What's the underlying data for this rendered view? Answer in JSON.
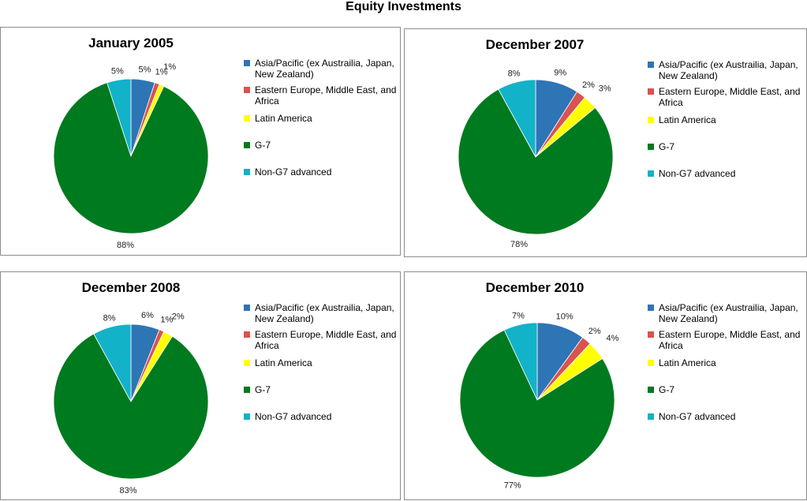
{
  "page_title": "Equity Investments",
  "colors": {
    "asia_pacific": "#2e75b6",
    "eastern_europe": "#d9534f",
    "latin_america": "#ffff00",
    "g7": "#007a1f",
    "non_g7": "#12b2c9"
  },
  "legend": [
    {
      "label": "Asia/Pacific (ex Austrailia, Japan, New Zealand)",
      "color": "#2e75b6"
    },
    {
      "label": "Eastern Europe, Middle East, and Africa",
      "color": "#d9534f"
    },
    {
      "label": "Latin America",
      "color": "#ffff00"
    },
    {
      "label": "G-7",
      "color": "#007a1f"
    },
    {
      "label": "Non-G7 advanced",
      "color": "#12b2c9"
    }
  ],
  "chart_data": [
    {
      "type": "pie",
      "title": "January 2005",
      "labels": [
        "Asia/Pacific (ex Austrailia, Japan, New Zealand)",
        "Eastern Europe, Middle East, and Africa",
        "Latin America",
        "G-7",
        "Non-G7 advanced"
      ],
      "values": [
        5,
        1,
        1,
        88,
        5
      ],
      "value_labels": [
        "5%",
        "1%",
        "1%",
        "88%",
        "5%"
      ],
      "legend_position": "right"
    },
    {
      "type": "pie",
      "title": "December 2007",
      "labels": [
        "Asia/Pacific (ex Austrailia, Japan, New Zealand)",
        "Eastern Europe, Middle East, and Africa",
        "Latin America",
        "G-7",
        "Non-G7 advanced"
      ],
      "values": [
        9,
        2,
        3,
        78,
        8
      ],
      "value_labels": [
        "9%",
        "2%",
        "3%",
        "78%",
        "8%"
      ],
      "legend_position": "right"
    },
    {
      "type": "pie",
      "title": "December 2008",
      "labels": [
        "Asia/Pacific (ex Austrailia, Japan, New Zealand)",
        "Eastern Europe, Middle East, and Africa",
        "Latin America",
        "G-7",
        "Non-G7 advanced"
      ],
      "values": [
        6,
        1,
        2,
        83,
        8
      ],
      "value_labels": [
        "6%",
        "1%",
        "2%",
        "83%",
        "8%"
      ],
      "legend_position": "right"
    },
    {
      "type": "pie",
      "title": "December 2010",
      "labels": [
        "Asia/Pacific (ex Austrailia, Japan, New Zealand)",
        "Eastern Europe, Middle East, and Africa",
        "Latin America",
        "G-7",
        "Non-G7 advanced"
      ],
      "values": [
        10,
        2,
        4,
        77,
        7
      ],
      "value_labels": [
        "10%",
        "2%",
        "4%",
        "77%",
        "7%"
      ],
      "legend_position": "right"
    }
  ]
}
